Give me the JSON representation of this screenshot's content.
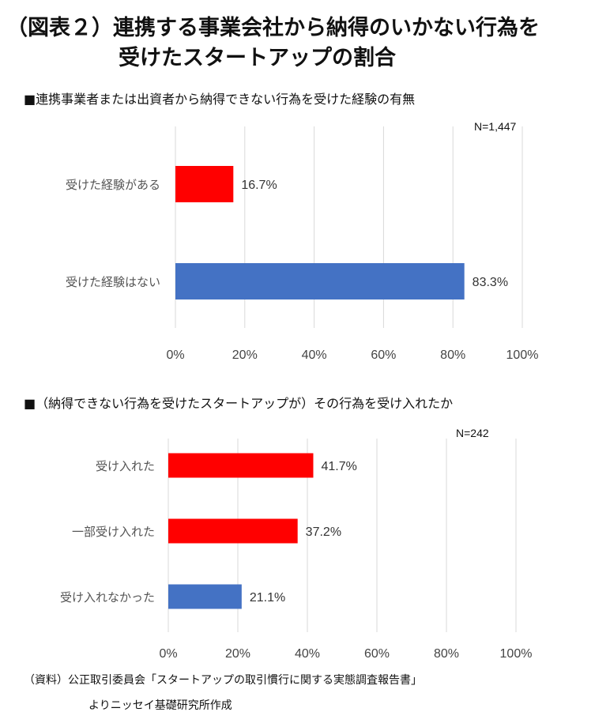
{
  "title": {
    "line1": "（図表２）連携する事業会社から納得のいかない行為を",
    "line2": "受けたスタートアップの割合"
  },
  "source": {
    "line1": "（資料）公正取引委員会「スタートアップの取引慣行に関する実態調査報告書」",
    "line2": "よりニッセイ基礎研究所作成"
  },
  "chart_data": [
    {
      "type": "bar",
      "orientation": "horizontal",
      "title": "■連携事業者または出資者から納得できない行為を受けた経験の有無",
      "note": "N=1,447",
      "categories": [
        "受けた経験がある",
        "受けた経験はない"
      ],
      "values": [
        16.7,
        83.3
      ],
      "value_labels": [
        "16.7%",
        "83.3%"
      ],
      "bar_colors": [
        "#ff0000",
        "#4472c4"
      ],
      "xlim": [
        0,
        100
      ],
      "xticks": [
        "0%",
        "20%",
        "40%",
        "60%",
        "80%",
        "100%"
      ],
      "grid": true
    },
    {
      "type": "bar",
      "orientation": "horizontal",
      "title": "■（納得できない行為を受けたスタートアップが）その行為を受け入れたか",
      "note": "N=242",
      "categories": [
        "受け入れた",
        "一部受け入れた",
        "受け入れなかった"
      ],
      "values": [
        41.7,
        37.2,
        21.1
      ],
      "value_labels": [
        "41.7%",
        "37.2%",
        "21.1%"
      ],
      "bar_colors": [
        "#ff0000",
        "#ff0000",
        "#4472c4"
      ],
      "xlim": [
        0,
        100
      ],
      "xticks": [
        "0%",
        "20%",
        "40%",
        "60%",
        "80%",
        "100%"
      ],
      "grid": true
    }
  ]
}
